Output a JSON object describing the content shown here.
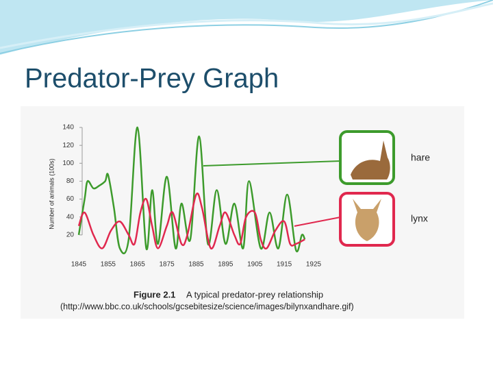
{
  "slide_title": "Predator-Prey Graph",
  "chart_data": {
    "type": "line",
    "ylabel": "Number of animals (100s)",
    "xlim": [
      1845,
      1925
    ],
    "xticks": [
      1845,
      1855,
      1865,
      1875,
      1885,
      1895,
      1905,
      1915,
      1925
    ],
    "ylim": [
      0,
      140
    ],
    "yticks": [
      20,
      40,
      60,
      80,
      100,
      120,
      140
    ],
    "series": [
      {
        "name": "hare",
        "color": "#3d9b2c",
        "x": [
          1845,
          1847,
          1848,
          1850,
          1852,
          1854,
          1855,
          1857,
          1859,
          1862,
          1865,
          1868,
          1870,
          1872,
          1875,
          1878,
          1880,
          1883,
          1886,
          1889,
          1892,
          1895,
          1898,
          1901,
          1903,
          1907,
          1910,
          1913,
          1916,
          1919,
          1921,
          1922
        ],
        "values": [
          20,
          60,
          80,
          72,
          75,
          80,
          87,
          50,
          5,
          15,
          140,
          5,
          70,
          10,
          85,
          5,
          55,
          15,
          130,
          10,
          70,
          10,
          55,
          5,
          80,
          5,
          45,
          5,
          65,
          3,
          20,
          15
        ]
      },
      {
        "name": "lynx",
        "color": "#e0284e",
        "x": [
          1845,
          1847,
          1850,
          1853,
          1856,
          1859,
          1862,
          1864,
          1866,
          1868,
          1870,
          1872,
          1875,
          1877,
          1880,
          1882,
          1885,
          1887,
          1890,
          1893,
          1895,
          1898,
          1900,
          1902,
          1905,
          1907,
          1909,
          1912,
          1915,
          1917,
          1919,
          1922
        ],
        "values": [
          30,
          45,
          20,
          5,
          25,
          35,
          20,
          10,
          45,
          60,
          30,
          5,
          30,
          45,
          10,
          20,
          65,
          50,
          5,
          30,
          45,
          20,
          10,
          40,
          45,
          15,
          5,
          25,
          35,
          10,
          10,
          15
        ]
      }
    ],
    "caption_bold": "Figure 2.1",
    "caption": "A typical predator-prey relationship",
    "source": "(http://www.bbc.co.uk/schools/gcsebitesize/science/images/bilynxandhare.gif)"
  }
}
